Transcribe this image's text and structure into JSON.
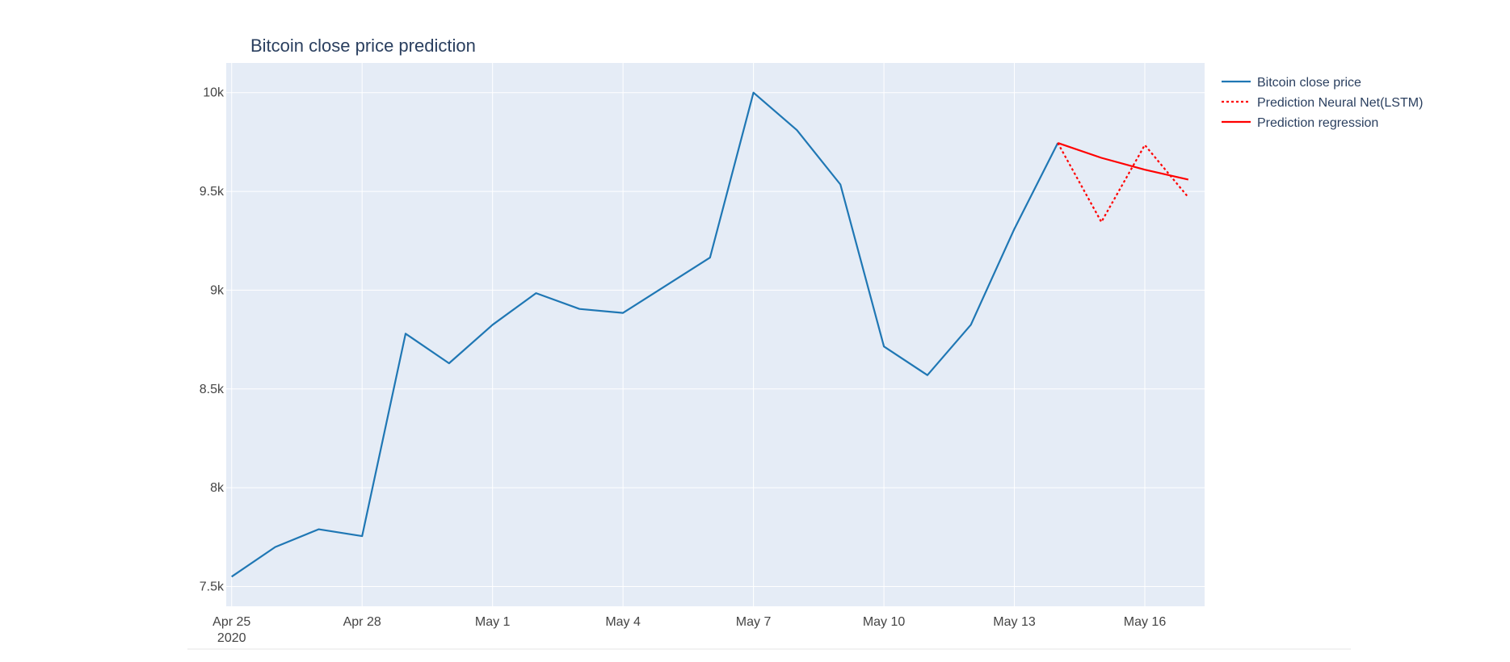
{
  "chart_data": {
    "type": "line",
    "title": "Bitcoin close price prediction",
    "xlabel": "",
    "ylabel": "",
    "x_axis": {
      "type": "date",
      "range": [
        "2020-04-24T21:00",
        "2020-05-17T09:00"
      ],
      "ticks": [
        {
          "date": "2020-04-25",
          "label": "Apr 25",
          "sublabel": "2020"
        },
        {
          "date": "2020-04-28",
          "label": "Apr 28",
          "sublabel": ""
        },
        {
          "date": "2020-05-01",
          "label": "May 1",
          "sublabel": ""
        },
        {
          "date": "2020-05-04",
          "label": "May 4",
          "sublabel": ""
        },
        {
          "date": "2020-05-07",
          "label": "May 7",
          "sublabel": ""
        },
        {
          "date": "2020-05-10",
          "label": "May 10",
          "sublabel": ""
        },
        {
          "date": "2020-05-13",
          "label": "May 13",
          "sublabel": ""
        },
        {
          "date": "2020-05-16",
          "label": "May 16",
          "sublabel": ""
        }
      ]
    },
    "y_axis": {
      "range": [
        7400,
        10150
      ],
      "ticks": [
        {
          "value": 7500,
          "label": "7.5k"
        },
        {
          "value": 8000,
          "label": "8k"
        },
        {
          "value": 8500,
          "label": "8.5k"
        },
        {
          "value": 9000,
          "label": "9k"
        },
        {
          "value": 9500,
          "label": "9.5k"
        },
        {
          "value": 10000,
          "label": "10k"
        }
      ]
    },
    "grid": true,
    "legend_position": "top-right",
    "plot_background": "#e5ecf6",
    "series": [
      {
        "name": "Bitcoin close price",
        "color": "#1f77b4",
        "dash": "solid",
        "x": [
          "2020-04-25",
          "2020-04-26",
          "2020-04-27",
          "2020-04-28",
          "2020-04-29",
          "2020-04-30",
          "2020-05-01",
          "2020-05-02",
          "2020-05-03",
          "2020-05-04",
          "2020-05-05",
          "2020-05-06",
          "2020-05-07",
          "2020-05-08",
          "2020-05-09",
          "2020-05-10",
          "2020-05-11",
          "2020-05-12",
          "2020-05-13",
          "2020-05-14"
        ],
        "y": [
          7550,
          7700,
          7790,
          7755,
          8780,
          8630,
          8825,
          8985,
          8905,
          8885,
          9025,
          9165,
          10000,
          9810,
          9535,
          8715,
          8570,
          8825,
          9310,
          9745
        ]
      },
      {
        "name": "Prediction Neural Net(LSTM)",
        "color": "#ff0000",
        "dash": "dot",
        "x": [
          "2020-05-14",
          "2020-05-15",
          "2020-05-16",
          "2020-05-17"
        ],
        "y": [
          9745,
          9345,
          9735,
          9470
        ]
      },
      {
        "name": "Prediction regression",
        "color": "#ff0000",
        "dash": "solid",
        "x": [
          "2020-05-14",
          "2020-05-15",
          "2020-05-16",
          "2020-05-17"
        ],
        "y": [
          9745,
          9670,
          9610,
          9560
        ]
      }
    ]
  }
}
